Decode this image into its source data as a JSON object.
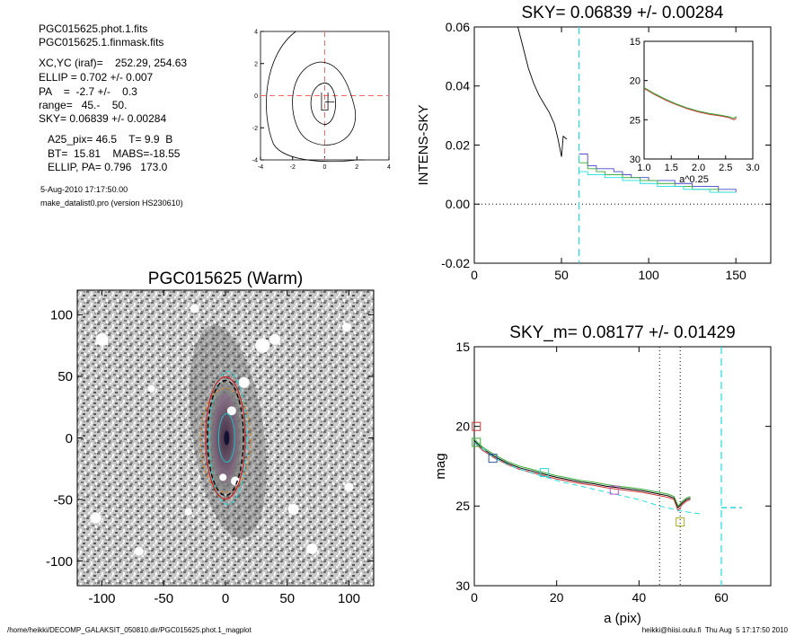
{
  "info": {
    "lines1": [
      "PGC015625.phot.1.fits",
      "PGC015625.1.finmask.fits"
    ],
    "lines2": [
      "XC,YC (iraf)=    252.29, 254.63",
      "ELLIP = 0.702 +/- 0.007",
      "PA    =  -2.7 +/-    0.3",
      "range=   45.-    50.",
      "SKY= 0.06839 +/- 0.00284"
    ],
    "lines3": [
      "A25_pix= 46.5    T= 9.9  B",
      "BT=  15.81    MABS=-18.55",
      "ELLIP, PA= 0.796   173.0"
    ],
    "date": "5-Aug-2010 17:17:50.00",
    "program": "make_datalist0.pro (version HS230610)"
  },
  "footer": {
    "path": "/home/heikki/DECOMP_GALAKSIT_050810.dir/PGC015625.phot.1_magplot",
    "user": "heikki@hiisi.oulu.fi  Thu Aug  5 17:17:50 2010"
  },
  "chart_data": [
    {
      "type": "line",
      "id": "contour",
      "title": "",
      "xticks": [
        "-4",
        "-2",
        "0",
        "2",
        "4"
      ],
      "yticks": [
        "4",
        "2",
        "0",
        "-2",
        "-4"
      ],
      "xlim": [
        -4,
        4
      ],
      "ylim": [
        -4,
        4
      ],
      "colors": {
        "crosshair": "#ff6666",
        "contour": "#000000"
      }
    },
    {
      "type": "line",
      "id": "intensity",
      "title": "SKY= 0.06839 +/- 0.00284",
      "ylabel": "INTENS-SKY",
      "xlabel": "",
      "xlim": [
        0,
        170
      ],
      "ylim": [
        -0.02,
        0.06
      ],
      "xticks": [
        "0",
        "50",
        "100",
        "150"
      ],
      "yticks": [
        "0.06",
        "0.04",
        "0.02",
        "0.00",
        "-0.02"
      ],
      "vline_x": 60,
      "series": [
        {
          "color": "#000000",
          "x": [
            25,
            28,
            31,
            34,
            37,
            40,
            43,
            46,
            48,
            50,
            51,
            53
          ],
          "y": [
            0.06,
            0.053,
            0.046,
            0.041,
            0.037,
            0.034,
            0.031,
            0.027,
            0.022,
            0.016,
            0.023,
            0.022
          ]
        },
        {
          "color": "#4444cc",
          "x": [
            60,
            65,
            70,
            75,
            80,
            85,
            90,
            95,
            100,
            105,
            110,
            115,
            120,
            125,
            130,
            135,
            140,
            145,
            150
          ],
          "y": [
            0.017,
            0.013,
            0.012,
            0.012,
            0.011,
            0.01,
            0.009,
            0.009,
            0.008,
            0.008,
            0.008,
            0.007,
            0.007,
            0.006,
            0.006,
            0.006,
            0.005,
            0.005,
            0.004
          ]
        },
        {
          "color": "#33aa33",
          "x": [
            60,
            65,
            70,
            75,
            80,
            85,
            90,
            95,
            100,
            105,
            110,
            115,
            120,
            125,
            130,
            135,
            140,
            145,
            150
          ],
          "y": [
            0.014,
            0.012,
            0.011,
            0.01,
            0.01,
            0.009,
            0.009,
            0.008,
            0.008,
            0.007,
            0.007,
            0.006,
            0.006,
            0.005,
            0.005,
            0.005,
            0.004,
            0.004,
            0.004
          ]
        },
        {
          "color": "#22dddd",
          "x": [
            60,
            65,
            70,
            75,
            80,
            85,
            90,
            95,
            100,
            105,
            110,
            115,
            120,
            125,
            130,
            135,
            140,
            145,
            150
          ],
          "y": [
            0.011,
            0.01,
            0.01,
            0.009,
            0.009,
            0.008,
            0.008,
            0.007,
            0.007,
            0.006,
            0.006,
            0.006,
            0.005,
            0.005,
            0.005,
            0.004,
            0.004,
            0.004,
            0.004
          ]
        }
      ]
    },
    {
      "type": "line",
      "id": "inset",
      "xlabel": "a^0.25",
      "xlim": [
        1.0,
        3.0
      ],
      "ylim": [
        30,
        15
      ],
      "xticks": [
        "1.0",
        "1.5",
        "2.0",
        "2.5",
        "3.0"
      ],
      "yticks": [
        "15",
        "20",
        "25",
        "30"
      ],
      "series": [
        {
          "color": "#cc3333",
          "x": [
            1.0,
            1.2,
            1.4,
            1.6,
            1.8,
            2.0,
            2.2,
            2.4,
            2.55,
            2.65,
            2.7
          ],
          "y": [
            21.0,
            21.8,
            22.5,
            23.1,
            23.6,
            24.0,
            24.3,
            24.5,
            24.7,
            25.0,
            24.8
          ]
        },
        {
          "color": "#33aa33",
          "x": [
            1.0,
            1.2,
            1.4,
            1.6,
            1.8,
            2.0,
            2.2,
            2.4,
            2.55,
            2.65,
            2.7
          ],
          "y": [
            20.9,
            21.7,
            22.4,
            23.0,
            23.5,
            23.9,
            24.2,
            24.4,
            24.6,
            24.8,
            24.6
          ]
        }
      ]
    },
    {
      "type": "heatmap",
      "id": "image",
      "title": "PGC015625 (Warm)",
      "xlim": [
        -120,
        120
      ],
      "ylim": [
        -120,
        120
      ],
      "xticks": [
        "-100",
        "-50",
        "0",
        "50",
        "100"
      ],
      "yticks": [
        "100",
        "50",
        "0",
        "-50",
        "-100"
      ],
      "ellipse_colors": [
        "#33cccc",
        "#dd8822",
        "#cc2222",
        "#000000",
        "#22bbbb"
      ]
    },
    {
      "type": "line",
      "id": "magnitude",
      "title": "SKY_m=  0.08177 +/- 0.01429",
      "ylabel": "mag",
      "xlabel": "a (pix)",
      "xlim": [
        0,
        72
      ],
      "ylim": [
        30,
        15
      ],
      "xticks": [
        "0",
        "20",
        "40",
        "60"
      ],
      "yticks": [
        "15",
        "20",
        "25",
        "30"
      ],
      "vlines_dotted": [
        45,
        50
      ],
      "vline_dashed": 60,
      "sky_segment": {
        "x": [
          60,
          65
        ],
        "y": 25.1
      },
      "series": [
        {
          "color": "#000000",
          "x": [
            0,
            2,
            5,
            8,
            11,
            14,
            17,
            20,
            23,
            26,
            29,
            32,
            35,
            38,
            41,
            44,
            47,
            48.5,
            49.5,
            50.5,
            51.5,
            52.5
          ],
          "y": [
            20.9,
            21.4,
            21.9,
            22.3,
            22.6,
            22.8,
            23.0,
            23.2,
            23.35,
            23.5,
            23.6,
            23.75,
            23.85,
            23.95,
            24.05,
            24.2,
            24.35,
            24.5,
            25.1,
            24.8,
            24.6,
            24.5
          ]
        },
        {
          "color": "#cc3333",
          "x": [
            0,
            2,
            5,
            8,
            11,
            14,
            17,
            20,
            23,
            26,
            29,
            32,
            35,
            38,
            41,
            44,
            47,
            48.5,
            49.5,
            50.5,
            51.5,
            52.5
          ],
          "y": [
            21.0,
            21.5,
            22.0,
            22.4,
            22.7,
            22.9,
            23.1,
            23.3,
            23.45,
            23.6,
            23.7,
            23.85,
            23.95,
            24.05,
            24.15,
            24.3,
            24.45,
            24.6,
            25.3,
            24.9,
            24.7,
            24.6
          ]
        },
        {
          "color": "#33aa33",
          "x": [
            0,
            2,
            5,
            8,
            11,
            14,
            17,
            20,
            23,
            26,
            29,
            32,
            35,
            38,
            41,
            44,
            47,
            48.5,
            49.5,
            50.5,
            51.5,
            52.5
          ],
          "y": [
            20.8,
            21.3,
            21.8,
            22.2,
            22.5,
            22.7,
            22.9,
            23.1,
            23.25,
            23.4,
            23.5,
            23.65,
            23.75,
            23.85,
            23.95,
            24.1,
            24.25,
            24.4,
            25.0,
            24.7,
            24.5,
            24.4
          ]
        },
        {
          "color": "#22dddd",
          "dashed": true,
          "x": [
            0,
            5,
            10,
            15,
            20,
            25,
            30,
            35,
            40,
            45,
            50,
            55
          ],
          "y": [
            21.0,
            22.0,
            22.6,
            23.0,
            23.4,
            23.7,
            24.0,
            24.3,
            24.6,
            25.0,
            25.3,
            25.5
          ]
        }
      ],
      "markers": [
        {
          "x": 0.5,
          "y": 20.0,
          "color": "#cc3333"
        },
        {
          "x": 0.5,
          "y": 21.0,
          "color": "#33aa33"
        },
        {
          "x": 4.5,
          "y": 22.0,
          "color": "#335599"
        },
        {
          "x": 17,
          "y": 22.9,
          "color": "#22dddd"
        },
        {
          "x": 34,
          "y": 24.0,
          "color": "#cc55cc"
        },
        {
          "x": 50,
          "y": 26.0,
          "color": "#aaaa22"
        }
      ]
    }
  ]
}
